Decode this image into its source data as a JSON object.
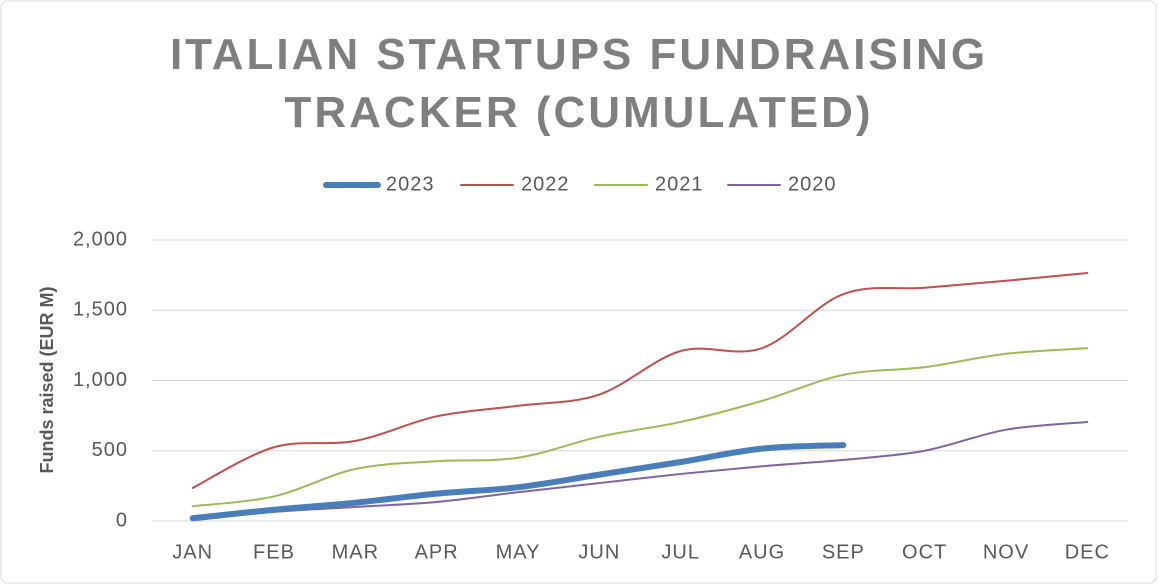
{
  "chart_data": {
    "type": "line",
    "title": "ITALIAN STARTUPS FUNDRAISING TRACKER (CUMULATED)",
    "y_label": "Funds raised (EUR M)",
    "categories": [
      "JAN",
      "FEB",
      "MAR",
      "APR",
      "MAY",
      "JUN",
      "JUL",
      "AUG",
      "SEP",
      "OCT",
      "NOV",
      "DEC"
    ],
    "series": [
      {
        "name": "2023",
        "color": "#4a7ebb",
        "width": 6,
        "values": [
          20,
          80,
          130,
          195,
          240,
          330,
          420,
          515,
          540,
          null,
          null,
          null
        ]
      },
      {
        "name": "2022",
        "color": "#c0504d",
        "width": 2,
        "values": [
          235,
          525,
          570,
          745,
          820,
          900,
          1210,
          1230,
          1615,
          1660,
          1710,
          1765
        ]
      },
      {
        "name": "2021",
        "color": "#9bbb59",
        "width": 2,
        "values": [
          105,
          175,
          370,
          425,
          450,
          600,
          705,
          855,
          1040,
          1095,
          1190,
          1230
        ]
      },
      {
        "name": "2020",
        "color": "#8064a2",
        "width": 2,
        "values": [
          5,
          65,
          100,
          135,
          205,
          270,
          335,
          390,
          435,
          500,
          650,
          705
        ]
      }
    ],
    "ylim": [
      0,
      2000
    ],
    "yticks": [
      0,
      500,
      {
        "value": 1000,
        "label": "1,000"
      },
      {
        "value": 1500,
        "label": "1,500"
      },
      {
        "value": 2000,
        "label": "2,000"
      }
    ],
    "grid": true,
    "legend": "top"
  }
}
